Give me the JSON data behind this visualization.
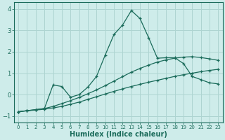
{
  "background_color": "#ceecea",
  "grid_color": "#aed4d1",
  "line_color": "#1a6b5a",
  "x_label": "Humidex (Indice chaleur)",
  "xlim": [
    -0.5,
    23.5
  ],
  "ylim": [
    -1.3,
    4.3
  ],
  "yticks": [
    -1,
    0,
    1,
    2,
    3,
    4
  ],
  "xticks": [
    0,
    1,
    2,
    3,
    4,
    5,
    6,
    7,
    8,
    9,
    10,
    11,
    12,
    13,
    14,
    15,
    16,
    17,
    18,
    19,
    20,
    21,
    22,
    23
  ],
  "series1_x": [
    0,
    1,
    2,
    3,
    4,
    5,
    6,
    7,
    8,
    9,
    10,
    11,
    12,
    13,
    14,
    15,
    16,
    17,
    18,
    19,
    20,
    21,
    22,
    23
  ],
  "series1_y": [
    -0.8,
    -0.75,
    -0.72,
    -0.68,
    -0.62,
    -0.55,
    -0.45,
    -0.35,
    -0.22,
    -0.1,
    0.03,
    0.15,
    0.27,
    0.38,
    0.48,
    0.58,
    0.67,
    0.76,
    0.85,
    0.93,
    1.0,
    1.07,
    1.13,
    1.18
  ],
  "series2_x": [
    0,
    1,
    2,
    3,
    4,
    5,
    6,
    7,
    8,
    9,
    10,
    11,
    12,
    13,
    14,
    15,
    16,
    17,
    18,
    19,
    20,
    21,
    22,
    23
  ],
  "series2_y": [
    -0.8,
    -0.75,
    -0.7,
    -0.65,
    -0.55,
    -0.42,
    -0.28,
    -0.13,
    0.04,
    0.22,
    0.42,
    0.63,
    0.84,
    1.05,
    1.22,
    1.38,
    1.52,
    1.62,
    1.7,
    1.75,
    1.77,
    1.73,
    1.67,
    1.6
  ],
  "series3_x": [
    0,
    1,
    2,
    3,
    4,
    5,
    6,
    7,
    8,
    9,
    10,
    11,
    12,
    13,
    14,
    15,
    16,
    17,
    18,
    19,
    20,
    21,
    22,
    23
  ],
  "series3_y": [
    -0.8,
    -0.75,
    -0.7,
    -0.65,
    0.45,
    0.38,
    -0.12,
    0.0,
    0.35,
    0.85,
    1.85,
    2.8,
    3.25,
    3.92,
    3.55,
    2.65,
    1.7,
    1.72,
    1.72,
    1.45,
    0.85,
    0.7,
    0.55,
    0.5
  ]
}
